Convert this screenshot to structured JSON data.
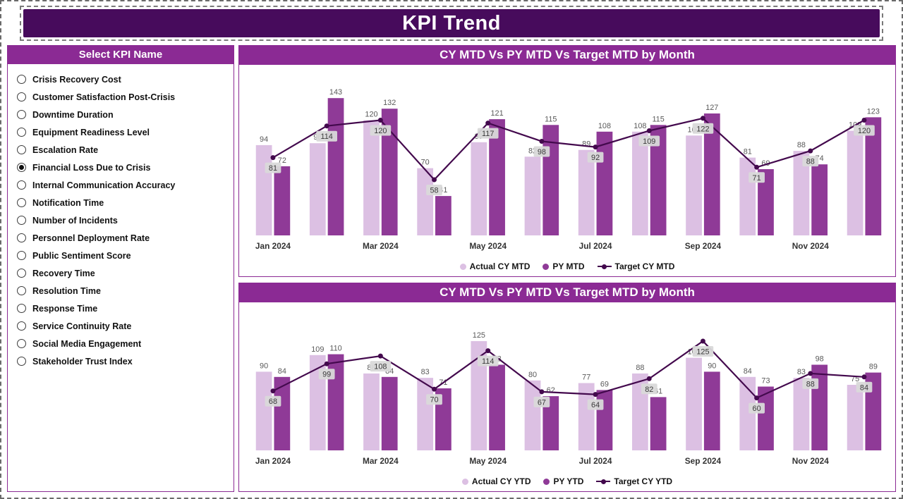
{
  "header": {
    "title": "KPI Trend"
  },
  "sidebar": {
    "title": "Select KPI Name",
    "selected_kpi": "Financial Loss Due to Crisis",
    "items": [
      {
        "label": "Crisis Recovery Cost",
        "selected": false
      },
      {
        "label": "Customer Satisfaction Post-Crisis",
        "selected": false
      },
      {
        "label": "Downtime Duration",
        "selected": false
      },
      {
        "label": "Equipment Readiness Level",
        "selected": false
      },
      {
        "label": "Escalation Rate",
        "selected": false
      },
      {
        "label": "Financial Loss Due to Crisis",
        "selected": true
      },
      {
        "label": "Internal Communication Accuracy",
        "selected": false
      },
      {
        "label": "Notification Time",
        "selected": false
      },
      {
        "label": "Number of Incidents",
        "selected": false
      },
      {
        "label": "Personnel Deployment Rate",
        "selected": false
      },
      {
        "label": "Public Sentiment Score",
        "selected": false
      },
      {
        "label": "Recovery Time",
        "selected": false
      },
      {
        "label": "Resolution Time",
        "selected": false
      },
      {
        "label": "Response Time",
        "selected": false
      },
      {
        "label": "Service Continuity Rate",
        "selected": false
      },
      {
        "label": "Social Media Engagement",
        "selected": false
      },
      {
        "label": "Stakeholder Trust Index",
        "selected": false
      }
    ]
  },
  "colors": {
    "header_bg": "#470B5C",
    "title_bg": "#8B2A94",
    "bar_light": "#DCC0E3",
    "bar_dark": "#8F3A97",
    "line": "#43094D",
    "chip_bg": "#D9D9D9",
    "border": "#8B2A94"
  },
  "chart_data": [
    {
      "type": "bar",
      "subtype": "grouped-bars-with-line",
      "title": "CY MTD Vs PY MTD Vs Target MTD by Month",
      "categories": [
        "Jan 2024",
        "Feb 2024",
        "Mar 2024",
        "Apr 2024",
        "May 2024",
        "Jun 2024",
        "Jul 2024",
        "Aug 2024",
        "Sep 2024",
        "Oct 2024",
        "Nov 2024",
        "Dec 2024"
      ],
      "x_ticks_shown": [
        "Jan 2024",
        "Mar 2024",
        "May 2024",
        "Jul 2024",
        "Sep 2024",
        "Nov 2024"
      ],
      "x_tick_interval": 2,
      "series": [
        {
          "name": "Actual CY MTD",
          "type": "bar",
          "color": "#DCC0E3",
          "values": [
            94,
            96,
            120,
            70,
            97,
            82,
            89,
            108,
            104,
            81,
            88,
            109
          ]
        },
        {
          "name": "PY MTD",
          "type": "bar",
          "color": "#8F3A97",
          "values": [
            72,
            143,
            132,
            41,
            121,
            115,
            108,
            115,
            127,
            69,
            74,
            123
          ]
        },
        {
          "name": "Target CY MTD",
          "type": "line",
          "color": "#43094D",
          "values": [
            81,
            114,
            120,
            58,
            117,
            98,
            92,
            109,
            122,
            71,
            88,
            120
          ]
        }
      ],
      "ylim": [
        0,
        160
      ],
      "grid": false,
      "legend_position": "bottom"
    },
    {
      "type": "bar",
      "subtype": "grouped-bars-with-line",
      "title": "CY MTD Vs PY MTD Vs Target MTD by Month",
      "categories": [
        "Jan 2024",
        "Feb 2024",
        "Mar 2024",
        "Apr 2024",
        "May 2024",
        "Jun 2024",
        "Jul 2024",
        "Aug 2024",
        "Sep 2024",
        "Oct 2024",
        "Nov 2024",
        "Dec 2024"
      ],
      "x_ticks_shown": [
        "Jan 2024",
        "Mar 2024",
        "May 2024",
        "Jul 2024",
        "Sep 2024",
        "Nov 2024"
      ],
      "x_tick_interval": 2,
      "series": [
        {
          "name": "Actual CY YTD",
          "type": "bar",
          "color": "#DCC0E3",
          "values": [
            90,
            109,
            88,
            83,
            125,
            80,
            77,
            88,
            106,
            84,
            83,
            75
          ]
        },
        {
          "name": "PY YTD",
          "type": "bar",
          "color": "#8F3A97",
          "values": [
            84,
            110,
            84,
            71,
            98,
            62,
            69,
            61,
            90,
            73,
            98,
            89
          ]
        },
        {
          "name": "Target CY YTD",
          "type": "line",
          "color": "#43094D",
          "values": [
            68,
            99,
            108,
            70,
            114,
            67,
            64,
            82,
            125,
            60,
            88,
            84
          ]
        }
      ],
      "ylim": [
        0,
        150
      ],
      "grid": false,
      "legend_position": "bottom"
    }
  ]
}
